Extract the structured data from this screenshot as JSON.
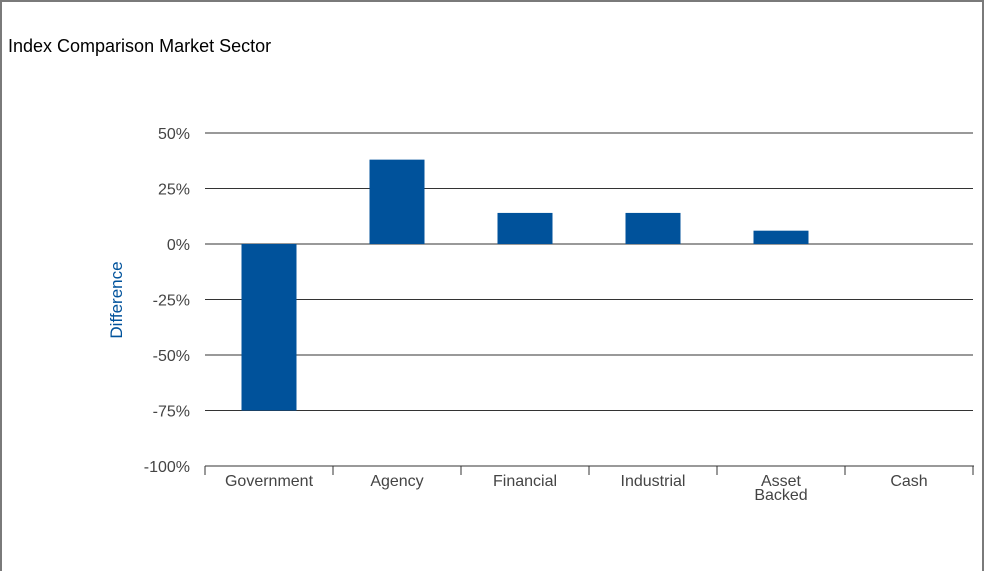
{
  "title": "Index Comparison Market Sector",
  "colors": {
    "bar": "#00529b",
    "grid": "#333333",
    "axis_label": "#00529b",
    "tick": "#444444"
  },
  "chart_data": {
    "type": "bar",
    "title": "Index Comparison Market Sector",
    "xlabel": "",
    "ylabel": "Difference",
    "ylim": [
      -100,
      50
    ],
    "yticks": [
      50,
      25,
      0,
      -25,
      -50,
      -75,
      -100
    ],
    "ytick_labels": [
      "50%",
      "25%",
      "0%",
      "-25%",
      "-50%",
      "-75%",
      "-100%"
    ],
    "categories": [
      "Government",
      "Agency",
      "Financial",
      "Industrial",
      "Asset Backed",
      "Cash"
    ],
    "category_lines": [
      [
        "Government"
      ],
      [
        "Agency"
      ],
      [
        "Financial"
      ],
      [
        "Industrial"
      ],
      [
        "Asset",
        "Backed"
      ],
      [
        "Cash"
      ]
    ],
    "values": [
      -75,
      38,
      14,
      14,
      6,
      0
    ],
    "grid": true,
    "legend": "none"
  }
}
